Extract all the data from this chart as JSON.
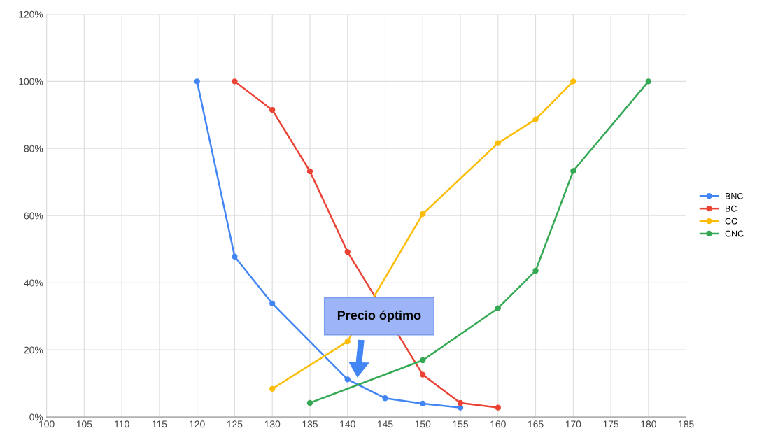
{
  "chart_data": {
    "type": "line",
    "x": [
      120,
      125,
      130,
      135,
      140,
      145,
      150,
      155,
      160,
      165,
      170,
      175,
      180
    ],
    "series": [
      {
        "name": "BNC",
        "color": "#4285f4",
        "values": [
          100,
          47.8,
          33.8,
          null,
          11.2,
          5.6,
          4.0,
          2.8,
          null,
          null,
          null,
          null,
          null
        ]
      },
      {
        "name": "BC",
        "color": "#ea4335",
        "values": [
          null,
          100,
          91.5,
          73.2,
          49.2,
          null,
          12.6,
          4.2,
          2.8,
          null,
          null,
          null,
          null
        ]
      },
      {
        "name": "CC",
        "color": "#fbbc04",
        "values": [
          null,
          null,
          8.4,
          null,
          22.5,
          null,
          60.5,
          null,
          81.6,
          88.7,
          100,
          null,
          null
        ]
      },
      {
        "name": "CNC",
        "color": "#34a853",
        "values": [
          null,
          null,
          null,
          4.2,
          null,
          null,
          16.9,
          null,
          32.4,
          43.6,
          73.3,
          null,
          100
        ]
      }
    ],
    "xlim": [
      100,
      185
    ],
    "xticks": [
      100,
      105,
      110,
      115,
      120,
      125,
      130,
      135,
      140,
      145,
      150,
      155,
      160,
      165,
      170,
      175,
      180,
      185
    ],
    "ylim": [
      0,
      120
    ],
    "yticks": [
      {
        "value": 0,
        "label": "0%"
      },
      {
        "value": 20,
        "label": "20%"
      },
      {
        "value": 40,
        "label": "40%"
      },
      {
        "value": 60,
        "label": "60%"
      },
      {
        "value": 80,
        "label": "80%"
      },
      {
        "value": 100,
        "label": "100%"
      },
      {
        "value": 120,
        "label": "120%"
      }
    ],
    "annotations": [
      "Precio óptimo"
    ],
    "grid": true,
    "legend": "right",
    "marker": "circle",
    "line_style": "solid"
  }
}
